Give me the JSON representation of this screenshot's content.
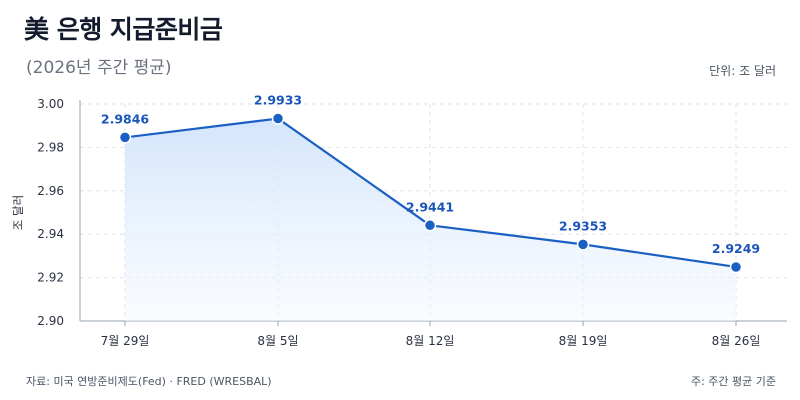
{
  "header": {
    "title": "美 은행 지급준비금",
    "subtitle": "(2026년 주간 평균)",
    "unit": "단위: 조 달러"
  },
  "footer": {
    "source": "자료: 미국 연방준비제도(Fed) · FRED (WRESBAL)",
    "note": "주: 주간 평균 기준"
  },
  "colors": {
    "line": "#1a5fc4",
    "point": "#1a5fc4",
    "area_top": "#cfe2fb",
    "area_bottom": "#f3f8fe",
    "grid": "#dfe3ea",
    "axis": "#9aa3b2"
  },
  "chart_data": {
    "type": "line",
    "categories": [
      "7월 29일",
      "8월 5일",
      "8월 12일",
      "8월 19일",
      "8월 26일"
    ],
    "series": [
      {
        "values": [
          2.9846,
          2.9933,
          2.9441,
          2.9353,
          2.9249
        ],
        "data_labels": [
          "2.9846",
          "2.9933",
          "2.9441",
          "2.9353",
          "2.9249"
        ]
      }
    ],
    "ylabel": "조 달러",
    "ylim": [
      2.9,
      3.0
    ],
    "yticks": [
      2.9,
      2.92,
      2.94,
      2.96,
      2.98,
      3.0
    ],
    "ytick_labels": [
      "2.90",
      "2.92",
      "2.94",
      "2.96",
      "2.98",
      "3.00"
    ],
    "grid": true,
    "area_fill": true
  }
}
